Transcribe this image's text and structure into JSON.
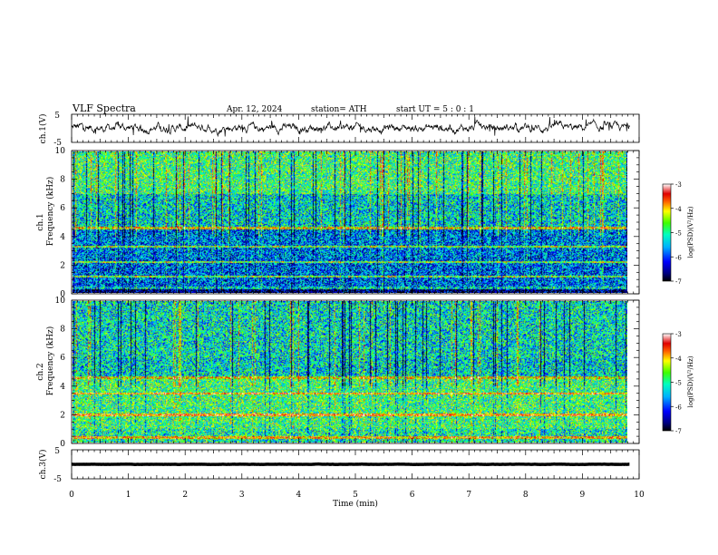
{
  "header": {
    "title": "VLF  Spectra",
    "date": "Apr. 12, 2024",
    "station": "station= ATH",
    "start": "start  UT  =    5  : 0   : 1"
  },
  "chart_data": [
    {
      "type": "line",
      "name": "ch1-waveform",
      "ylabel": "ch.1(V)",
      "ylim": [
        -5,
        5
      ],
      "yticks": [
        "5",
        "-5"
      ],
      "xlim": [
        0,
        10
      ],
      "description_values": {
        "mean": 0.2,
        "amplitude": 0.6
      }
    },
    {
      "type": "heatmap",
      "name": "ch1-spectrogram",
      "ylabel": "ch.1\nFrequency (kHz)",
      "ylim": [
        0,
        10
      ],
      "yticks": [
        "0",
        "2",
        "4",
        "6",
        "8",
        "10"
      ],
      "xlim": [
        0,
        9.83
      ],
      "bands_khz": [
        0.4,
        1.2,
        2.2,
        3.3,
        4.6
      ],
      "colorbar": {
        "label": "log(PSD)(V²/Hz)",
        "range": [
          -7,
          -3
        ],
        "ticks": [
          "-3",
          "-4",
          "-5",
          "-6",
          "-7"
        ]
      }
    },
    {
      "type": "heatmap",
      "name": "ch2-spectrogram",
      "ylabel": "ch.2\nFrequency (kHz)",
      "ylim": [
        0,
        10
      ],
      "yticks": [
        "0",
        "2",
        "4",
        "6",
        "8",
        "10"
      ],
      "xlim": [
        0,
        9.83
      ],
      "bands_khz": [
        0.4,
        2.0,
        3.5,
        4.6
      ],
      "colorbar": {
        "label": "log(PSD)(V²/Hz)",
        "range": [
          -7,
          -3
        ],
        "ticks": [
          "-3",
          "-4",
          "-5",
          "-6",
          "-7"
        ]
      }
    },
    {
      "type": "line",
      "name": "ch3-waveform",
      "ylabel": "ch.3(V)",
      "ylim": [
        -5,
        5
      ],
      "yticks": [
        "5",
        "-5"
      ],
      "xlim": [
        0,
        10
      ],
      "description_values": {
        "mean": 0.0,
        "amplitude": 0.1
      }
    }
  ],
  "xaxis": {
    "label": "Time  (min)",
    "ticks": [
      "0",
      "1",
      "2",
      "3",
      "4",
      "5",
      "6",
      "7",
      "8",
      "9",
      "10"
    ],
    "range": [
      0,
      10
    ]
  },
  "colors": {
    "trace": "#000000",
    "cmap": [
      "#000000",
      "#0000a0",
      "#0040ff",
      "#00c0ff",
      "#00ffb0",
      "#40ff40",
      "#ffff00",
      "#ff8000",
      "#e00000",
      "#ffffff"
    ]
  }
}
